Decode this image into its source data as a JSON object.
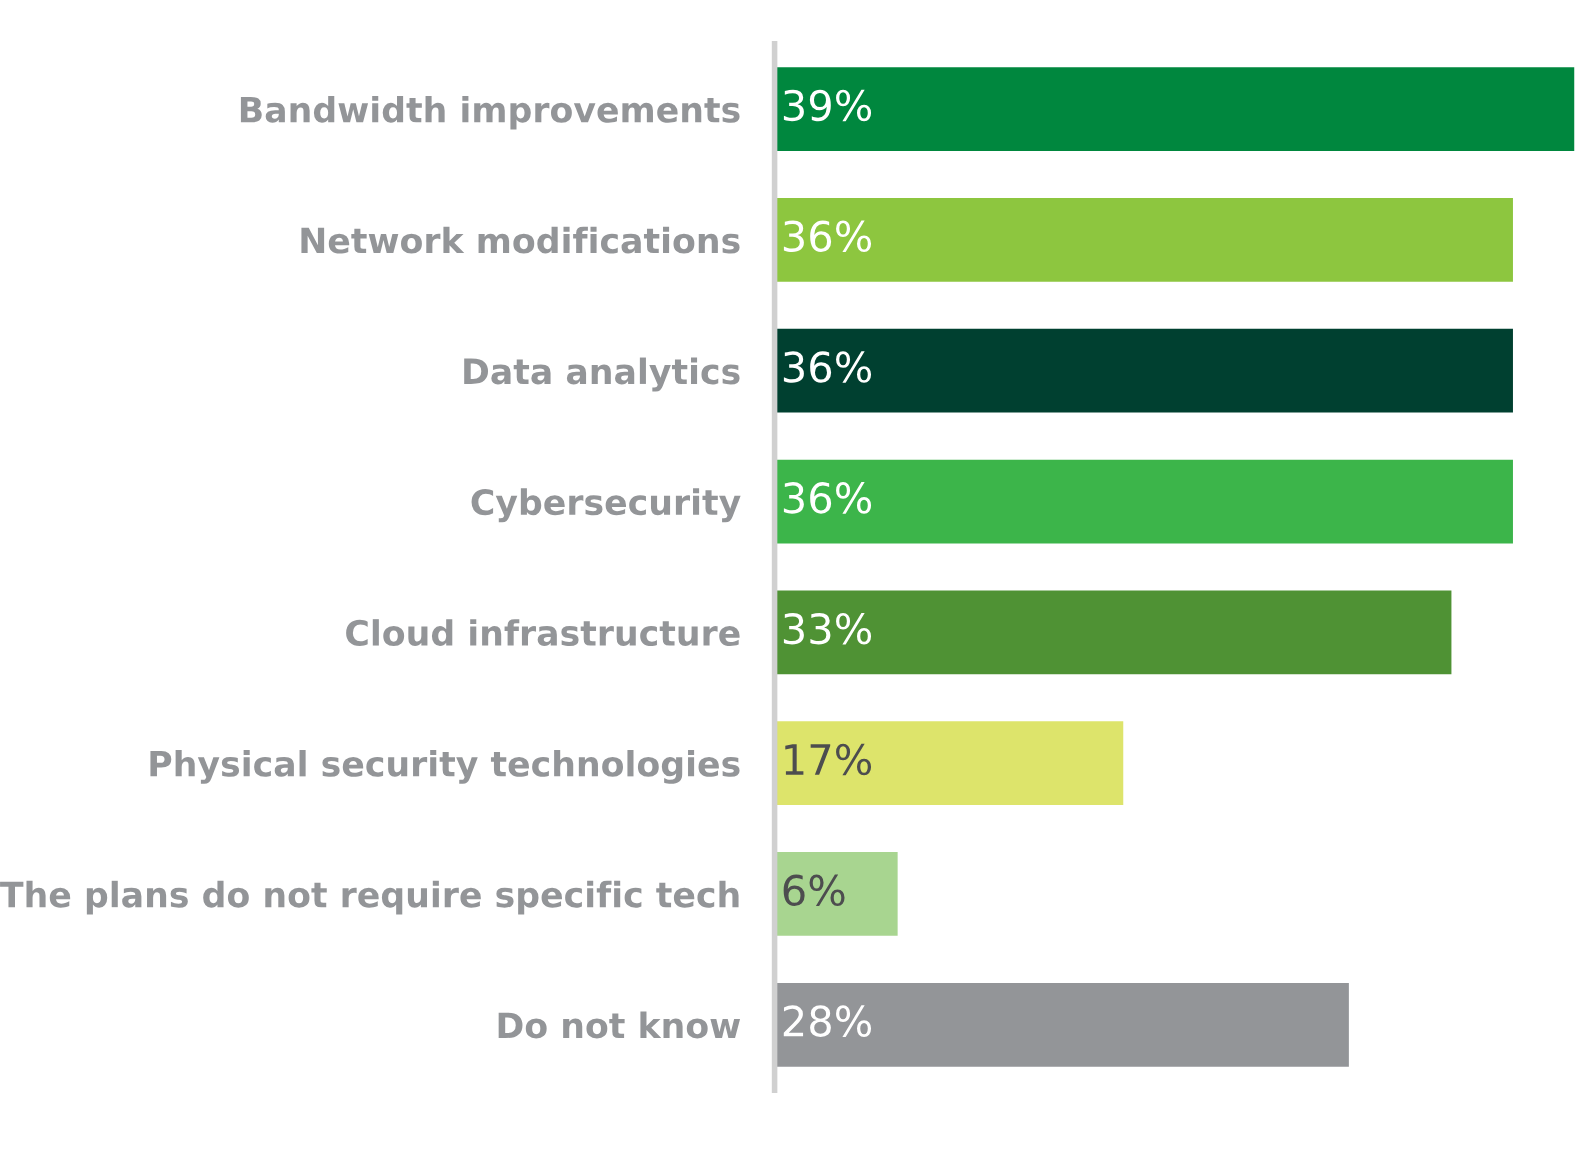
{
  "chart_data": {
    "type": "bar",
    "orientation": "horizontal",
    "categories": [
      "Bandwidth improvements",
      "Network modifications",
      "Data analytics",
      "Cybersecurity",
      "Cloud infrastructure",
      "Physical security technologies",
      "The plans do not require specific tech",
      "Do not know"
    ],
    "values": [
      39,
      36,
      36,
      36,
      33,
      17,
      6,
      28
    ],
    "value_labels": [
      "39%",
      "36%",
      "36%",
      "36%",
      "33%",
      "17%",
      "6%",
      "28%"
    ],
    "colors": [
      "#00873e",
      "#8dc63f",
      "#004030",
      "#3cb54a",
      "#4f9234",
      "#dde46b",
      "#a8d590",
      "#939598"
    ],
    "grid": false,
    "legend": false
  }
}
